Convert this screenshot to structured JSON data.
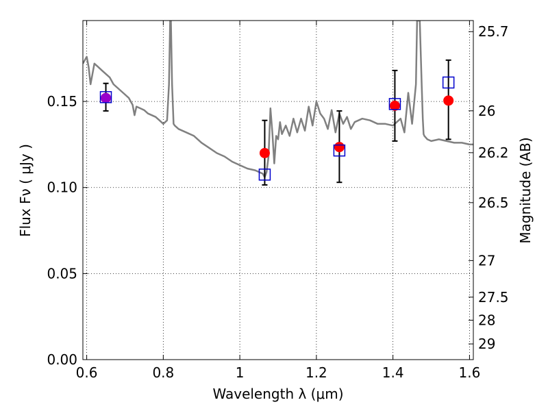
{
  "chart_data": {
    "type": "scatter",
    "xlabel": "Wavelength  λ (μm)",
    "ylabel": "Flux  Fν ( μJy )",
    "y2label": "Magnitude (AB)",
    "xlim": [
      0.59,
      1.61
    ],
    "ylim": [
      0.0,
      0.197
    ],
    "x_ticks": [
      0.6,
      0.8,
      1.0,
      1.2,
      1.4,
      1.6
    ],
    "x_tick_labels": [
      "0.6",
      "0.8",
      "1",
      "1.2",
      "1.4",
      "1.6"
    ],
    "y_ticks": [
      0.0,
      0.05,
      0.1,
      0.15
    ],
    "y_tick_labels": [
      "0.00",
      "0.05",
      "0.10",
      "0.15"
    ],
    "y2_ticks": [
      25.7,
      26,
      26.2,
      26.5,
      27,
      27.5,
      28,
      29
    ],
    "y2_tick_labels": [
      "25.7",
      "26",
      "26.2",
      "26.5",
      "27",
      "27.5",
      "28",
      "29"
    ],
    "grid": true,
    "colors": {
      "template": "#808080",
      "observed": "#ff0000",
      "model": "#0000cc",
      "overlap": "#9900cc",
      "errorbar": "#000000"
    },
    "template_spectrum": {
      "x": [
        0.59,
        0.6,
        0.605,
        0.61,
        0.62,
        0.63,
        0.64,
        0.65,
        0.66,
        0.67,
        0.68,
        0.69,
        0.7,
        0.71,
        0.72,
        0.725,
        0.73,
        0.74,
        0.75,
        0.76,
        0.77,
        0.78,
        0.79,
        0.8,
        0.81,
        0.815,
        0.818,
        0.82,
        0.823,
        0.827,
        0.83,
        0.84,
        0.86,
        0.88,
        0.9,
        0.92,
        0.94,
        0.96,
        0.98,
        1.0,
        1.02,
        1.04,
        1.05,
        1.06,
        1.065,
        1.07,
        1.075,
        1.08,
        1.085,
        1.09,
        1.095,
        1.1,
        1.105,
        1.11,
        1.12,
        1.13,
        1.14,
        1.15,
        1.16,
        1.17,
        1.18,
        1.19,
        1.2,
        1.21,
        1.22,
        1.23,
        1.24,
        1.25,
        1.26,
        1.27,
        1.28,
        1.29,
        1.3,
        1.32,
        1.34,
        1.36,
        1.38,
        1.4,
        1.42,
        1.43,
        1.44,
        1.45,
        1.46,
        1.463,
        1.47,
        1.475,
        1.478,
        1.48,
        1.482,
        1.49,
        1.5,
        1.52,
        1.54,
        1.56,
        1.58,
        1.6,
        1.61
      ],
      "y": [
        0.172,
        0.176,
        0.17,
        0.16,
        0.172,
        0.17,
        0.168,
        0.166,
        0.164,
        0.16,
        0.158,
        0.156,
        0.154,
        0.152,
        0.148,
        0.142,
        0.147,
        0.146,
        0.145,
        0.143,
        0.142,
        0.141,
        0.139,
        0.137,
        0.139,
        0.16,
        0.197,
        0.197,
        0.16,
        0.137,
        0.136,
        0.134,
        0.132,
        0.13,
        0.126,
        0.123,
        0.12,
        0.118,
        0.115,
        0.113,
        0.111,
        0.11,
        0.109,
        0.108,
        0.106,
        0.109,
        0.118,
        0.146,
        0.132,
        0.114,
        0.13,
        0.128,
        0.138,
        0.131,
        0.136,
        0.13,
        0.14,
        0.132,
        0.14,
        0.133,
        0.147,
        0.136,
        0.15,
        0.143,
        0.14,
        0.134,
        0.145,
        0.132,
        0.143,
        0.137,
        0.141,
        0.134,
        0.138,
        0.14,
        0.139,
        0.137,
        0.137,
        0.136,
        0.14,
        0.132,
        0.155,
        0.137,
        0.16,
        0.197,
        0.197,
        0.16,
        0.14,
        0.131,
        0.13,
        0.128,
        0.127,
        0.128,
        0.127,
        0.126,
        0.126,
        0.125,
        0.125
      ]
    },
    "observed": {
      "x": [
        0.65,
        1.065,
        1.26,
        1.405,
        1.545
      ],
      "y": [
        0.152,
        0.12,
        0.1235,
        0.1475,
        0.1505
      ],
      "yerr_low": [
        0.0075,
        0.0185,
        0.0205,
        0.0205,
        0.0225
      ],
      "yerr_high": [
        0.0085,
        0.019,
        0.021,
        0.0205,
        0.0235
      ]
    },
    "model": {
      "x": [
        0.65,
        1.065,
        1.26,
        1.405,
        1.545
      ],
      "y": [
        0.1525,
        0.1075,
        0.1215,
        0.1485,
        0.161
      ]
    },
    "overlap_marker": {
      "x": 0.65,
      "y": 0.152
    }
  }
}
